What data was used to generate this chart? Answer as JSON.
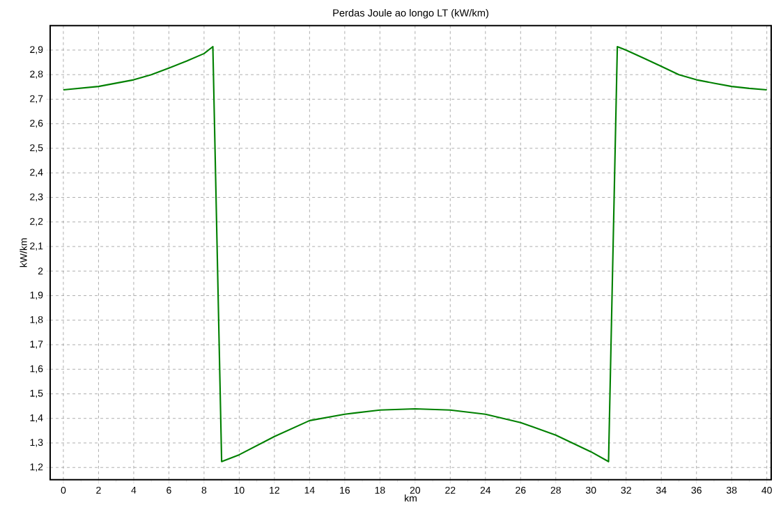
{
  "chart_data": {
    "type": "line",
    "title": "Perdas Joule ao longo LT (kW/km)",
    "xlabel": "km",
    "ylabel": "kW/km",
    "series": [
      {
        "color": "#008000",
        "x": [
          0,
          2,
          4,
          5,
          6,
          7,
          8,
          8.5,
          9,
          10,
          12,
          14,
          16,
          18,
          20,
          22,
          24,
          26,
          28,
          30,
          31,
          31.5,
          32,
          33,
          34,
          35,
          36,
          37,
          38,
          39,
          40
        ],
        "values": [
          2.738,
          2.752,
          2.779,
          2.8,
          2.827,
          2.855,
          2.886,
          2.914,
          1.224,
          1.252,
          1.326,
          1.391,
          1.417,
          1.434,
          1.439,
          1.434,
          1.417,
          1.383,
          1.332,
          1.264,
          1.224,
          2.914,
          2.9,
          2.867,
          2.834,
          2.8,
          2.779,
          2.765,
          2.752,
          2.744,
          2.738
        ]
      }
    ],
    "xlim": [
      -0.75,
      40.25
    ],
    "ylim": [
      1.15,
      3.0
    ],
    "xticks": [
      0,
      {
        "value": 1,
        "label": null
      },
      2,
      {
        "value": 3,
        "label": null
      },
      4,
      {
        "value": 5,
        "label": null
      },
      6,
      {
        "value": 7,
        "label": null
      },
      8,
      {
        "value": 9,
        "label": null
      },
      10,
      {
        "value": 11,
        "label": null
      },
      12,
      {
        "value": 13,
        "label": null
      },
      14,
      {
        "value": 15,
        "label": null
      },
      16,
      {
        "value": 17,
        "label": null
      },
      18,
      {
        "value": 19,
        "label": null
      },
      20,
      {
        "value": 21,
        "label": null
      },
      22,
      {
        "value": 23,
        "label": null
      },
      24,
      {
        "value": 25,
        "label": null
      },
      26,
      {
        "value": 27,
        "label": null
      },
      28,
      {
        "value": 29,
        "label": null
      },
      30,
      {
        "value": 31,
        "label": null
      },
      32,
      {
        "value": 33,
        "label": null
      },
      34,
      {
        "value": 35,
        "label": null
      },
      36,
      {
        "value": 37,
        "label": null
      },
      38,
      {
        "value": 39,
        "label": null
      },
      40
    ],
    "yticks": [
      {
        "value": 1.2,
        "label": "1,2"
      },
      {
        "value": 1.3,
        "label": "1,3"
      },
      {
        "value": 1.4,
        "label": "1,4"
      },
      {
        "value": 1.5,
        "label": "1,5"
      },
      {
        "value": 1.6,
        "label": "1,6"
      },
      {
        "value": 1.7,
        "label": "1,7"
      },
      {
        "value": 1.8,
        "label": "1,8"
      },
      {
        "value": 1.9,
        "label": "1,9"
      },
      2,
      {
        "value": 2.1,
        "label": "2,1"
      },
      {
        "value": 2.2,
        "label": "2,2"
      },
      {
        "value": 2.3,
        "label": "2,3"
      },
      {
        "value": 2.4,
        "label": "2,4"
      },
      {
        "value": 2.5,
        "label": "2,5"
      },
      {
        "value": 2.6,
        "label": "2,6"
      },
      {
        "value": 2.7,
        "label": "2,7"
      },
      {
        "value": 2.8,
        "label": "2,8"
      },
      {
        "value": 2.9,
        "label": "2,9"
      }
    ],
    "grid": true,
    "marker": "none",
    "line_style": "solid"
  }
}
